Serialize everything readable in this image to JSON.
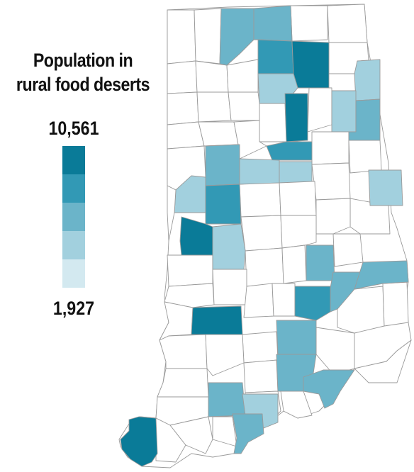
{
  "legend": {
    "title_line1": "Population in",
    "title_line2": "rural food deserts",
    "max_label": "10,561",
    "min_label": "1,927",
    "colors": [
      "#0a7b98",
      "#3299b5",
      "#6bb4c9",
      "#a2d0de",
      "#d3e9f0"
    ]
  },
  "map": {
    "outline_color": "#9a9a9a",
    "no_data_color": "#ffffff",
    "region": "Indiana counties"
  }
}
